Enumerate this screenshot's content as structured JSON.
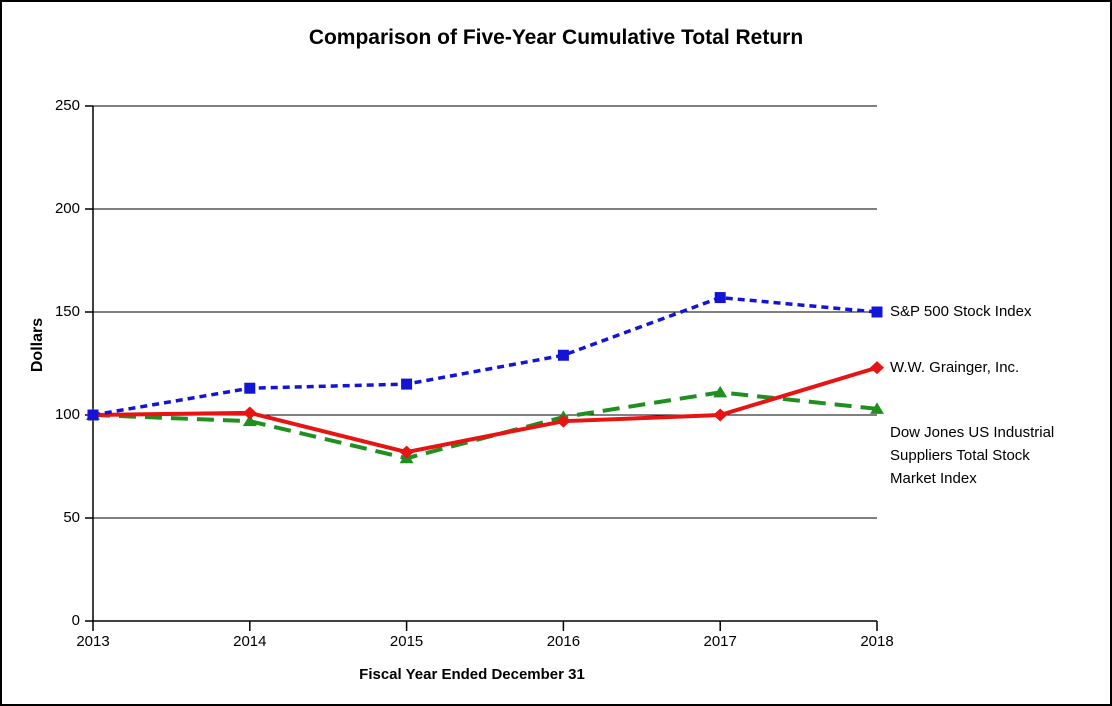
{
  "figure": {
    "background": "#ffffff",
    "border_color": "#000000",
    "axis_color": "#000000"
  },
  "chart_data": {
    "type": "line",
    "title": "Comparison of Five-Year Cumulative Total Return",
    "xlabel": "Fiscal Year Ended December 31",
    "ylabel": "Dollars",
    "categories": [
      "2013",
      "2014",
      "2015",
      "2016",
      "2017",
      "2018"
    ],
    "yticks": [
      0,
      50,
      100,
      150,
      200,
      250
    ],
    "ylim": [
      0,
      250
    ],
    "grid": "horizontal gridlines at each labeled y value",
    "legend_position": "direct labels at right ends of lines",
    "series": [
      {
        "name": "S&P 500 Stock Index",
        "color": "#1414d6",
        "line_style": "dashed-short",
        "marker": "square",
        "values": [
          100,
          113,
          115,
          129,
          157,
          150
        ]
      },
      {
        "name": "W.W. Grainger, Inc.",
        "color": "#e81414",
        "line_style": "solid",
        "marker": "diamond",
        "values": [
          100,
          101,
          82,
          97,
          100,
          123
        ]
      },
      {
        "name": "Dow Jones US Industrial Suppliers Total Stock Market Index",
        "end_label_lines": [
          "Dow Jones US Industrial",
          "Suppliers Total Stock",
          "Market Index"
        ],
        "color": "#1f8f1f",
        "line_style": "dashed-long",
        "marker": "triangle",
        "values": [
          100,
          97,
          79,
          99,
          111,
          103
        ]
      }
    ]
  }
}
